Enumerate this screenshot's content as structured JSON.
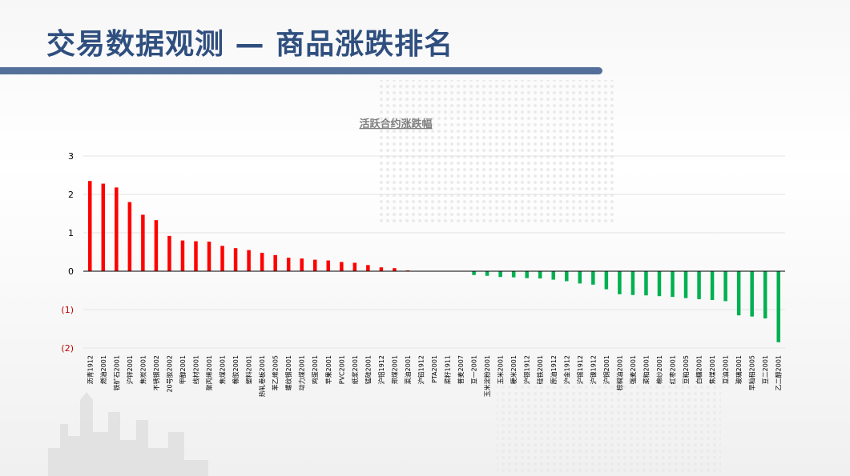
{
  "header": {
    "title": "交易数据观测 — 商品涨跌排名"
  },
  "colors": {
    "up": "#ff0000",
    "down": "#00b050",
    "negative_tick": "#c00000",
    "title_bar": "#54709a"
  },
  "chart_data": {
    "type": "bar",
    "title": "活跃合约涨跌幅",
    "xlabel": "",
    "ylabel": "",
    "ylim": [
      -2,
      3
    ],
    "yticks": [
      3,
      2,
      1,
      0,
      -1,
      -2
    ],
    "ytick_labels": [
      "3",
      "2",
      "1",
      "0",
      "(1)",
      "(2)"
    ],
    "grid": true,
    "legend": "none",
    "categories": [
      "沥青1912",
      "燃油2001",
      "铁矿石2001",
      "沪锌2001",
      "焦炭2001",
      "不锈钢2002",
      "20号胶2002",
      "甲醇2001",
      "线材2001",
      "聚丙烯2001",
      "焦煤2001",
      "橡胶2001",
      "塑料2001",
      "热轧卷板2001",
      "苯乙烯2005",
      "螺纹钢2001",
      "动力煤2001",
      "鸡蛋2001",
      "苹果2001",
      "PVC2001",
      "纸浆2001",
      "锰硅2001",
      "沪铝1912",
      "郑煤2001",
      "菜油2001",
      "沪铅1912",
      "PTA2001",
      "菜籽1911",
      "普麦2007",
      "豆一2001",
      "玉米淀粉2001",
      "玉米2001",
      "粳米2001",
      "沪银1912",
      "硅铁2001",
      "原油1912",
      "沪金1912",
      "沪锡1912",
      "沪镍1912",
      "沪铜2001",
      "棕榈油2001",
      "强麦2001",
      "菜粕2001",
      "棉纱2001",
      "红枣2001",
      "豆粕2005",
      "白糖2001",
      "焦煤2001",
      "豆油2001",
      "玻璃2001",
      "早籼稻2005",
      "豆二2001",
      "乙二醇2001"
    ],
    "values": [
      2.35,
      2.28,
      2.18,
      1.8,
      1.47,
      1.33,
      0.92,
      0.8,
      0.78,
      0.77,
      0.66,
      0.6,
      0.55,
      0.48,
      0.42,
      0.35,
      0.33,
      0.3,
      0.28,
      0.24,
      0.22,
      0.16,
      0.1,
      0.08,
      0.02,
      0.0,
      0.0,
      0.0,
      0.0,
      -0.1,
      -0.12,
      -0.15,
      -0.16,
      -0.18,
      -0.19,
      -0.22,
      -0.26,
      -0.32,
      -0.35,
      -0.47,
      -0.6,
      -0.62,
      -0.63,
      -0.65,
      -0.67,
      -0.7,
      -0.73,
      -0.75,
      -0.78,
      -1.15,
      -1.18,
      -1.23,
      -1.85
    ]
  }
}
